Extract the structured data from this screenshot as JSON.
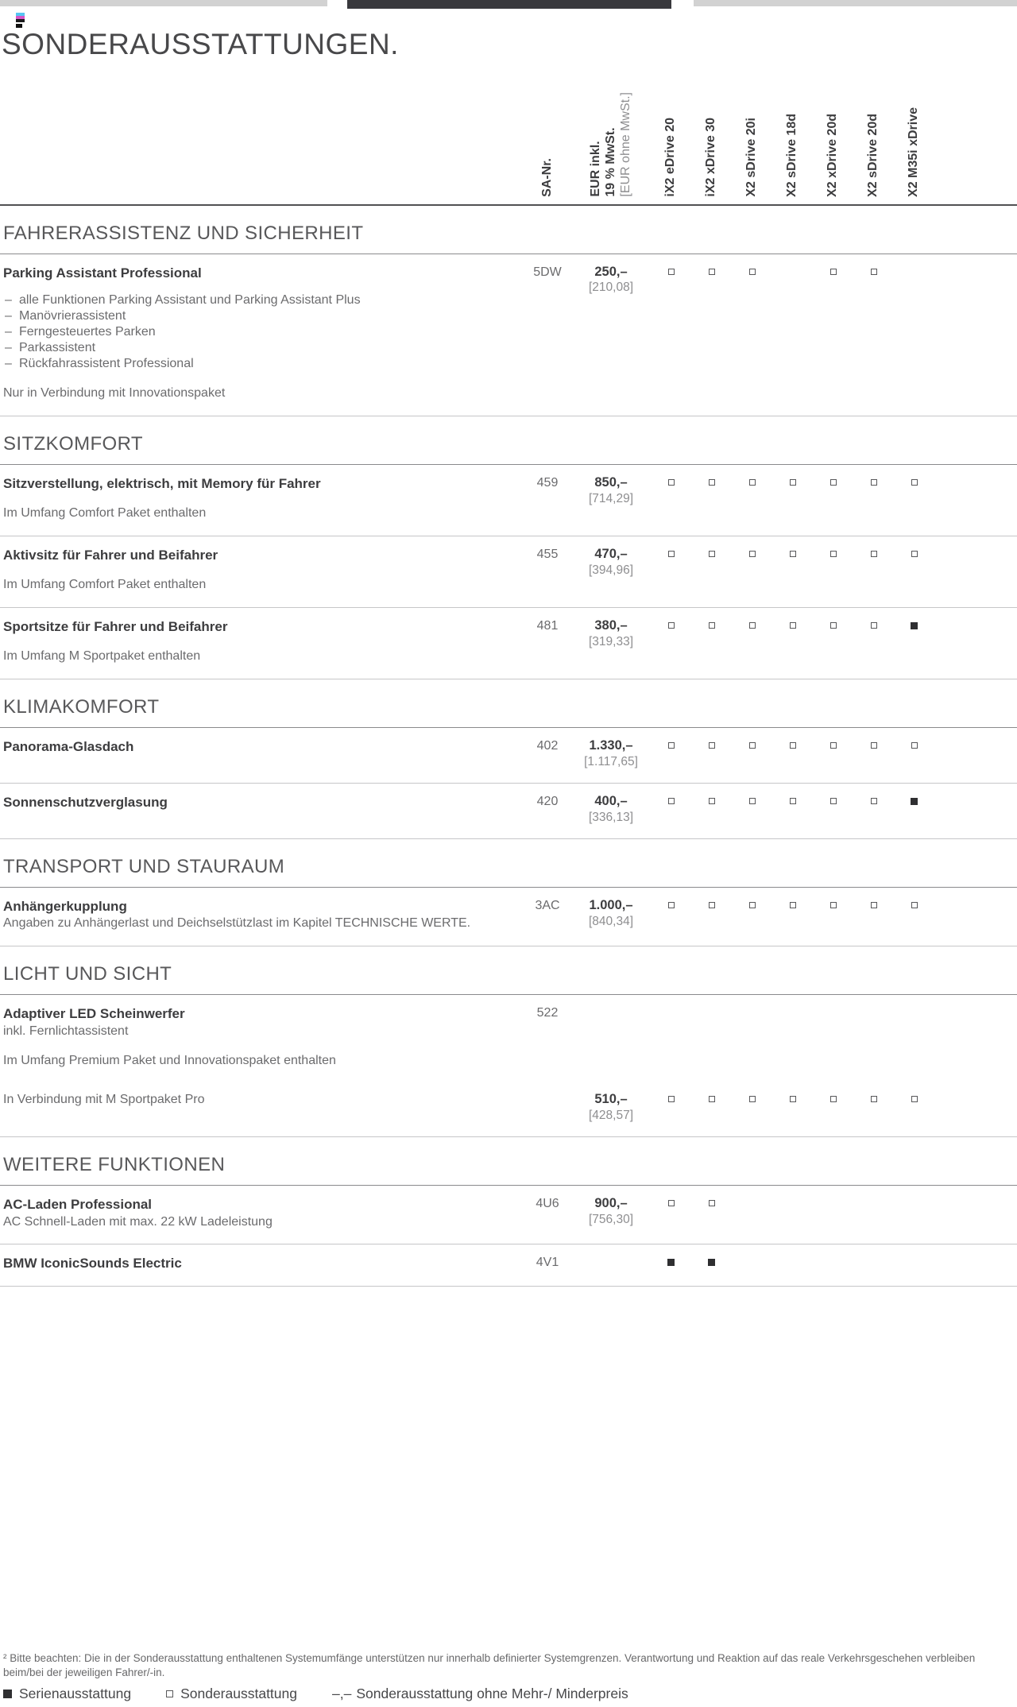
{
  "page": {
    "title": "SONDERAUSSTATTUNGEN."
  },
  "table": {
    "col_headers": {
      "sa": "SA-Nr.",
      "eur_lines": [
        "EUR inkl.",
        "19 % MwSt.",
        "[EUR ohne MwSt.]"
      ],
      "models": [
        "iX2 eDrive 20",
        "iX2 xDrive 30",
        "X2 sDrive 20i",
        "X2 sDrive 18d",
        "X2 xDrive 20d",
        "X2 sDrive 20d",
        "X2 M35i xDrive"
      ]
    },
    "sections": [
      {
        "title": "FAHRERASSISTENZ UND SICHERHEIT",
        "rows": [
          {
            "lines": [
              {
                "name": "Parking Assistant Professional",
                "bullets": [
                  "alle Funktionen Parking Assistant und Parking Assistant Plus",
                  "Manövrierassistent",
                  "Ferngesteuertes Parken",
                  "Parkassistent",
                  "Rückfahrassistent Professional"
                ],
                "note": "Nur in Verbindung mit Innovationspaket",
                "sa": "5DW",
                "price": "250,–",
                "price_net": "[210,08]",
                "marks": [
                  "o",
                  "o",
                  "o",
                  "",
                  "o",
                  "o",
                  ""
                ]
              }
            ]
          }
        ]
      },
      {
        "title": "SITZKOMFORT",
        "rows": [
          {
            "lines": [
              {
                "name": "Sitzverstellung, elektrisch, mit Memory für Fahrer",
                "note": "Im Umfang Comfort Paket enthalten",
                "sa": "459",
                "price": "850,–",
                "price_net": "[714,29]",
                "marks": [
                  "o",
                  "o",
                  "o",
                  "o",
                  "o",
                  "o",
                  "o"
                ]
              }
            ]
          },
          {
            "lines": [
              {
                "name": "Aktivsitz für Fahrer und Beifahrer",
                "note": "Im Umfang Comfort Paket enthalten",
                "sa": "455",
                "price": "470,–",
                "price_net": "[394,96]",
                "marks": [
                  "o",
                  "o",
                  "o",
                  "o",
                  "o",
                  "o",
                  "o"
                ]
              }
            ]
          },
          {
            "lines": [
              {
                "name": "Sportsitze für Fahrer und Beifahrer",
                "note": "Im Umfang M Sportpaket enthalten",
                "sa": "481",
                "price": "380,–",
                "price_net": "[319,33]",
                "marks": [
                  "o",
                  "o",
                  "o",
                  "o",
                  "o",
                  "o",
                  "s"
                ]
              }
            ]
          }
        ]
      },
      {
        "title": "KLIMAKOMFORT",
        "rows": [
          {
            "lines": [
              {
                "name": "Panorama-Glasdach",
                "sa": "402",
                "price": "1.330,–",
                "price_net": "[1.117,65]",
                "marks": [
                  "o",
                  "o",
                  "o",
                  "o",
                  "o",
                  "o",
                  "o"
                ]
              }
            ]
          },
          {
            "lines": [
              {
                "name": "Sonnenschutzverglasung",
                "sa": "420",
                "price": "400,–",
                "price_net": "[336,13]",
                "marks": [
                  "o",
                  "o",
                  "o",
                  "o",
                  "o",
                  "o",
                  "s"
                ]
              }
            ]
          }
        ]
      },
      {
        "title": "TRANSPORT UND STAURAUM",
        "rows": [
          {
            "lines": [
              {
                "name": "Anhängerkupplung",
                "desc": "Angaben zu Anhängerlast und Deichselstützlast im Kapitel TECHNISCHE WERTE.",
                "sa": "3AC",
                "price": "1.000,–",
                "price_net": "[840,34]",
                "marks": [
                  "o",
                  "o",
                  "o",
                  "o",
                  "o",
                  "o",
                  "o"
                ]
              }
            ]
          }
        ]
      },
      {
        "title": "LICHT UND SICHT",
        "rows": [
          {
            "lines": [
              {
                "name": "Adaptiver LED Scheinwerfer",
                "desc": "inkl. Fernlichtassistent",
                "note": "Im Umfang Premium Paket und Innovationspaket enthalten",
                "sa": "522",
                "price": "",
                "price_net": "",
                "marks": [
                  "",
                  "",
                  "",
                  "",
                  "",
                  "",
                  ""
                ]
              },
              {
                "text": "In Verbindung mit M Sportpaket Pro",
                "sa": "",
                "price": "510,–",
                "price_net": "[428,57]",
                "marks": [
                  "o",
                  "o",
                  "o",
                  "o",
                  "o",
                  "o",
                  "o"
                ]
              }
            ]
          }
        ]
      },
      {
        "title": "WEITERE FUNKTIONEN",
        "rows": [
          {
            "lines": [
              {
                "name": "AC-Laden Professional",
                "desc": "AC Schnell-Laden mit max. 22 kW Ladeleistung",
                "sa": "4U6",
                "price": "900,–",
                "price_net": "[756,30]",
                "marks": [
                  "o",
                  "o",
                  "",
                  "",
                  "",
                  "",
                  ""
                ]
              }
            ]
          },
          {
            "lines": [
              {
                "name": "BMW IconicSounds Electric",
                "sa": "4V1",
                "price": "",
                "price_net": "",
                "marks": [
                  "s",
                  "s",
                  "",
                  "",
                  "",
                  "",
                  ""
                ]
              }
            ]
          }
        ]
      }
    ]
  },
  "footer": {
    "footnote": "² Bitte beachten: Die in der Sonderausstattung enthaltenen Systemumfänge unterstützen nur innerhalb definierter Systemgrenzen. Verantwortung und Reaktion auf das reale Verkehrsgeschehen verbleiben beim/bei der jeweiligen Fahrer/-in.",
    "legend": [
      {
        "symbol": "s",
        "label": "Serienausstattung"
      },
      {
        "symbol": "o",
        "label": "Sonderausstattung"
      },
      {
        "symbol": "d",
        "symbol_text": "–,–",
        "label": "Sonderausstattung ohne Mehr-/ Minderpreis"
      }
    ]
  }
}
